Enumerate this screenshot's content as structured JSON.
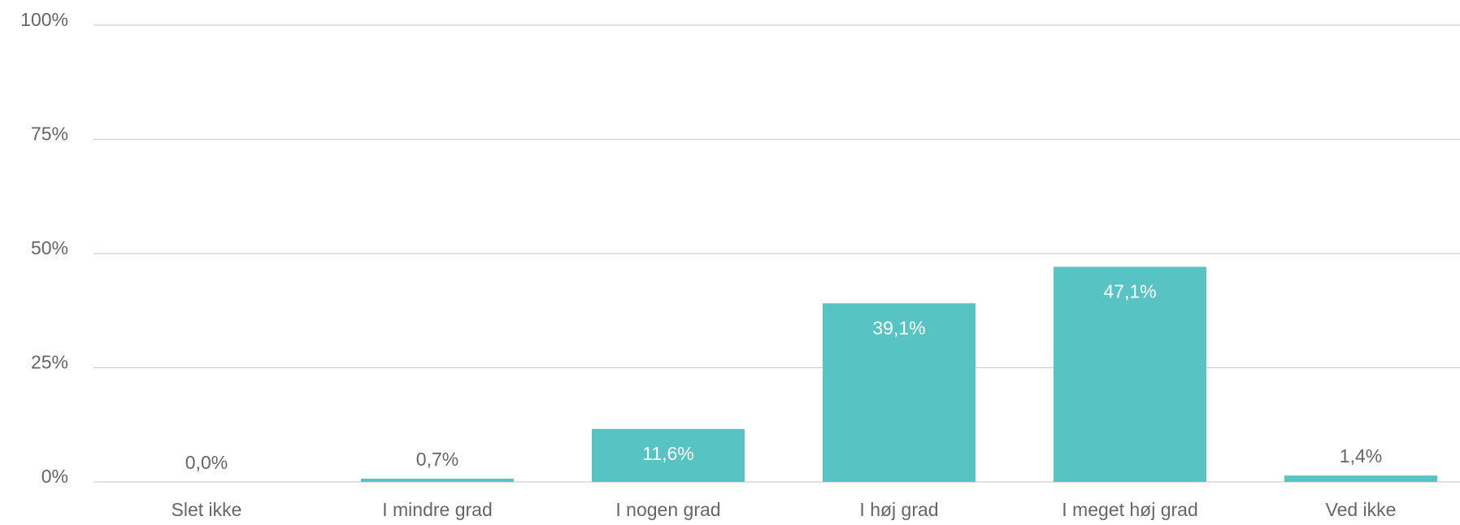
{
  "chart_data": {
    "type": "bar",
    "categories": [
      "Slet ikke",
      "I mindre grad",
      "I nogen grad",
      "I høj grad",
      "I meget høj grad",
      "Ved ikke"
    ],
    "values": [
      0.0,
      0.7,
      11.6,
      39.1,
      47.1,
      1.4
    ],
    "value_labels": [
      "0,0%",
      "0,7%",
      "11,6%",
      "39,1%",
      "47,1%",
      "1,4%"
    ],
    "color": "#57c3c2",
    "ylim": [
      0,
      100
    ],
    "yticks": [
      {
        "value": 0,
        "label": "0%"
      },
      {
        "value": 25,
        "label": "25%"
      },
      {
        "value": 50,
        "label": "50%"
      },
      {
        "value": 75,
        "label": "75%"
      },
      {
        "value": 100,
        "label": "100%"
      }
    ],
    "grid": true
  }
}
